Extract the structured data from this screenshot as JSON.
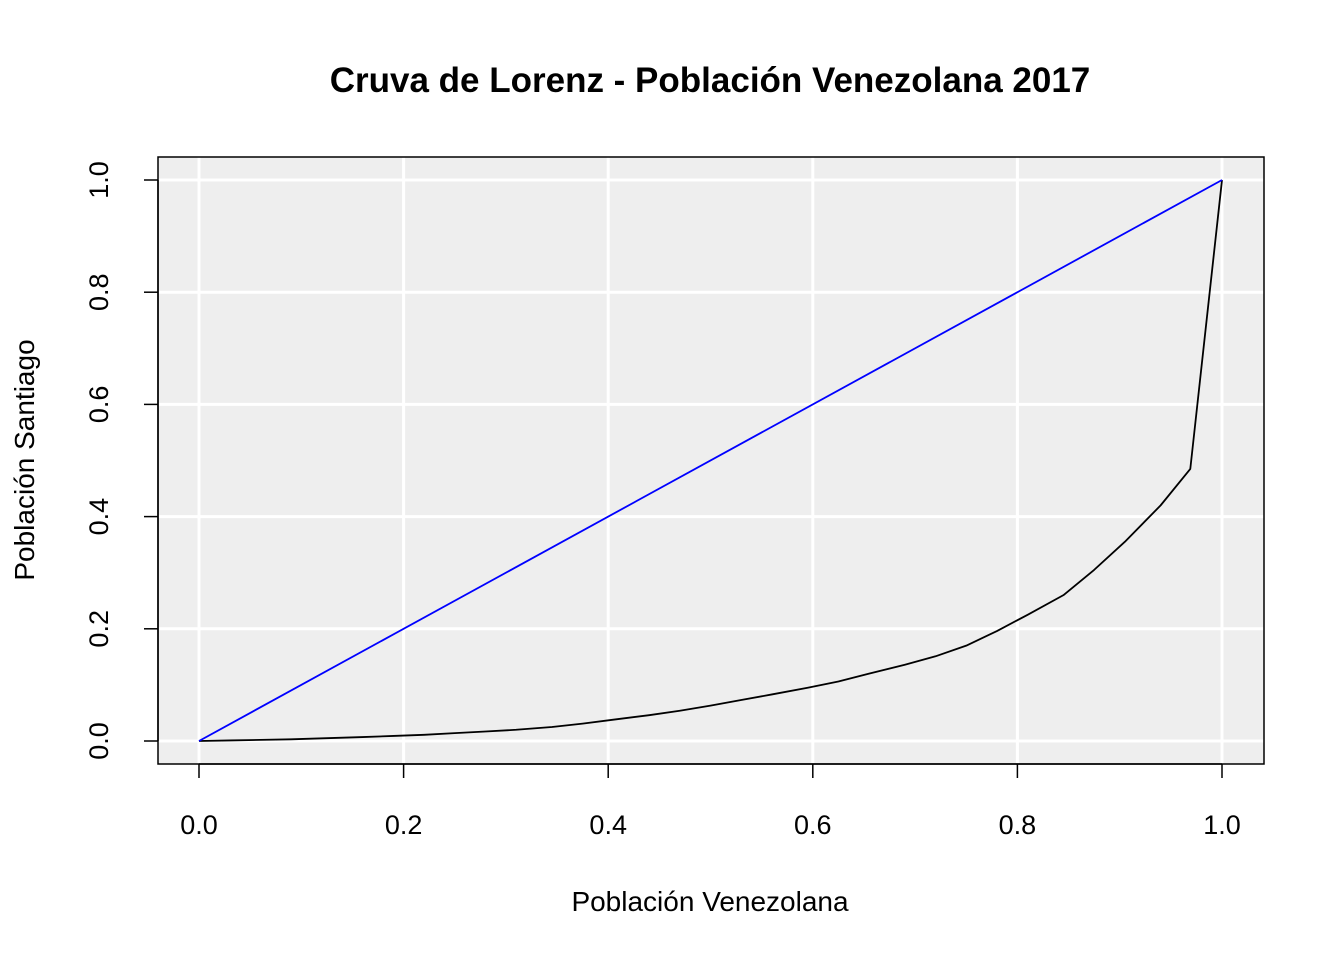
{
  "chart_data": {
    "type": "line",
    "title": "Cruva de Lorenz - Población Venezolana 2017",
    "xlabel": "Población Venezolana",
    "ylabel": "Población Santiago",
    "xlim": [
      0,
      1
    ],
    "ylim": [
      0,
      1
    ],
    "x_ticks": [
      "0.0",
      "0.2",
      "0.4",
      "0.6",
      "0.8",
      "1.0"
    ],
    "y_ticks": [
      "0.0",
      "0.2",
      "0.4",
      "0.6",
      "0.8",
      "1.0"
    ],
    "grid": true,
    "background_color": "#eeeeee",
    "grid_color": "#ffffff",
    "series": [
      {
        "color": "#000000",
        "x": [
          0,
          0.03,
          0.06,
          0.09,
          0.125,
          0.16,
          0.19,
          0.22,
          0.25,
          0.28,
          0.31,
          0.345,
          0.375,
          0.405,
          0.44,
          0.47,
          0.5,
          0.53,
          0.56,
          0.595,
          0.625,
          0.655,
          0.69,
          0.72,
          0.75,
          0.78,
          0.81,
          0.845,
          0.875,
          0.905,
          0.94,
          0.969,
          1.0
        ],
        "y": [
          0,
          0.001,
          0.002,
          0.003,
          0.005,
          0.007,
          0.009,
          0.011,
          0.014,
          0.017,
          0.02,
          0.025,
          0.031,
          0.038,
          0.046,
          0.054,
          0.063,
          0.073,
          0.083,
          0.095,
          0.106,
          0.12,
          0.136,
          0.151,
          0.17,
          0.196,
          0.225,
          0.26,
          0.305,
          0.355,
          0.42,
          0.485,
          1.0
        ]
      },
      {
        "color": "#0000ff",
        "x": [
          0,
          1
        ],
        "y": [
          0,
          1
        ]
      }
    ]
  }
}
